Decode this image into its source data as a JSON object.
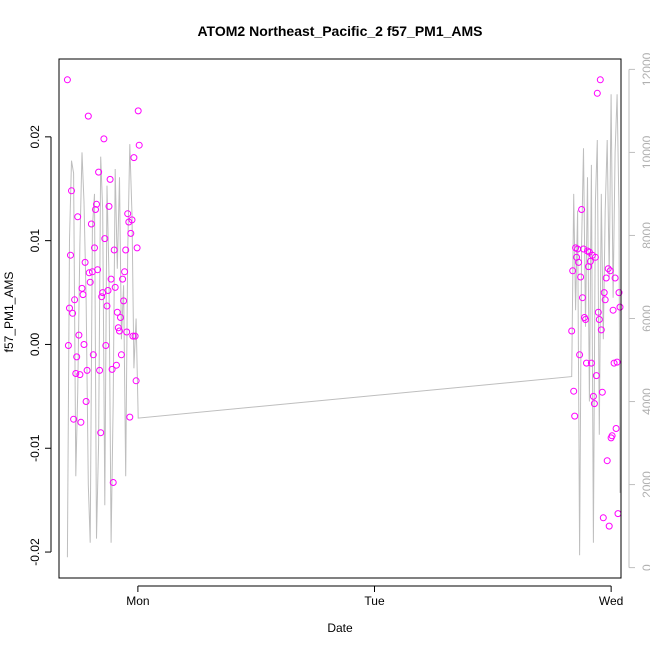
{
  "colors": {
    "points": "#ff00ff",
    "line": "#bebebe",
    "right_axis": "#bebebe",
    "frame": "#000000"
  },
  "chart_data": {
    "type": "scatter",
    "title": "ATOM2 Northeast_Pacific_2 f57_PM1_AMS",
    "xlabel": "Date",
    "ylabel": "f57_PM1_AMS",
    "grid": false,
    "x_axis": {
      "range": [
        "Sun 16:00",
        "Wed 01:00"
      ],
      "ticks": [
        {
          "at": "Mon 00:00",
          "label": "Mon"
        },
        {
          "at": "Tue 00:00",
          "label": "Tue"
        },
        {
          "at": "Wed 00:00",
          "label": "Wed"
        }
      ]
    },
    "y_left": {
      "range": [
        -0.0225,
        0.0275
      ],
      "ticks": [
        -0.02,
        -0.01,
        0.0,
        0.01,
        0.02
      ],
      "tick_labels": [
        "-0.02",
        "-0.01",
        "0.00",
        "0.01",
        "0.02"
      ]
    },
    "y_right": {
      "range": [
        -250,
        12250
      ],
      "ticks": [
        0,
        2000,
        4000,
        6000,
        8000,
        10000,
        12000
      ],
      "tick_labels": [
        "0",
        "2000",
        "4000",
        "6000",
        "8000",
        "10000",
        "12000"
      ],
      "color": "#bebebe"
    },
    "series": [
      {
        "kind": "points",
        "axis": "left",
        "color": "#ff00ff",
        "x": [
          "Sun 16:51",
          "Sun 16:57",
          "Sun 17:04",
          "Sun 17:10",
          "Sun 17:16",
          "Sun 17:23",
          "Sun 17:29",
          "Sun 17:35",
          "Sun 17:42",
          "Sun 17:48",
          "Sun 17:54",
          "Sun 18:01",
          "Sun 18:07",
          "Sun 18:13",
          "Sun 18:20",
          "Sun 18:26",
          "Sun 18:32",
          "Sun 18:39",
          "Sun 18:45",
          "Sun 18:51",
          "Sun 18:58",
          "Sun 19:04",
          "Sun 19:10",
          "Sun 19:17",
          "Sun 19:23",
          "Sun 19:29",
          "Sun 19:36",
          "Sun 19:42",
          "Sun 19:48",
          "Sun 19:55",
          "Sun 20:01",
          "Sun 20:07",
          "Sun 20:14",
          "Sun 20:20",
          "Sun 20:26",
          "Sun 20:33",
          "Sun 20:39",
          "Sun 20:45",
          "Sun 20:52",
          "Sun 20:58",
          "Sun 21:04",
          "Sun 21:11",
          "Sun 21:17",
          "Sun 21:23",
          "Sun 21:30",
          "Sun 21:36",
          "Sun 21:42",
          "Sun 21:49",
          "Sun 21:55",
          "Sun 22:01",
          "Sun 22:08",
          "Sun 22:14",
          "Sun 22:20",
          "Sun 22:27",
          "Sun 22:33",
          "Sun 22:39",
          "Sun 22:46",
          "Sun 22:52",
          "Sun 22:58",
          "Sun 23:05",
          "Sun 23:11",
          "Sun 23:17",
          "Sun 23:24",
          "Sun 23:30",
          "Sun 23:36",
          "Sun 23:43",
          "Sun 23:49",
          "Sun 23:55",
          "Mon 00:02",
          "Mon 00:08",
          "Tue 20:00",
          "Tue 20:06",
          "Tue 20:12",
          "Tue 20:18",
          "Tue 20:24",
          "Tue 20:30",
          "Tue 20:36",
          "Tue 20:42",
          "Tue 20:48",
          "Tue 20:54",
          "Tue 21:00",
          "Tue 21:06",
          "Tue 21:12",
          "Tue 21:18",
          "Tue 21:24",
          "Tue 21:30",
          "Tue 21:36",
          "Tue 21:42",
          "Tue 21:48",
          "Tue 21:54",
          "Tue 22:00",
          "Tue 22:06",
          "Tue 22:12",
          "Tue 22:18",
          "Tue 22:24",
          "Tue 22:30",
          "Tue 22:36",
          "Tue 22:42",
          "Tue 22:48",
          "Tue 22:54",
          "Tue 23:00",
          "Tue 23:06",
          "Tue 23:12",
          "Tue 23:18",
          "Tue 23:24",
          "Tue 23:30",
          "Tue 23:36",
          "Tue 23:42",
          "Tue 23:48",
          "Tue 23:54",
          "Wed 00:00",
          "Wed 00:06",
          "Wed 00:12",
          "Wed 00:18",
          "Wed 00:24",
          "Wed 00:30",
          "Wed 00:36",
          "Wed 00:42",
          "Wed 00:48",
          "Wed 00:54"
        ],
        "y": [
          0.0255,
          -0.0001,
          0.0035,
          0.0086,
          0.0148,
          0.003,
          -0.0072,
          0.0043,
          -0.0028,
          -0.0012,
          0.0123,
          0.0009,
          -0.0029,
          -0.0075,
          0.0054,
          0.0048,
          0.0,
          0.0079,
          -0.0055,
          -0.0025,
          0.022,
          0.0069,
          0.006,
          0.0116,
          0.007,
          -0.001,
          0.0093,
          0.013,
          0.0135,
          0.0072,
          0.0166,
          -0.0025,
          -0.0085,
          0.0046,
          0.005,
          0.0198,
          0.0102,
          -0.0001,
          0.0037,
          0.0052,
          0.0133,
          0.0159,
          0.0063,
          -0.0024,
          -0.0133,
          0.0091,
          0.0055,
          -0.002,
          0.0031,
          0.0016,
          0.0013,
          0.0026,
          -0.001,
          0.0063,
          0.0042,
          0.007,
          0.0091,
          0.0012,
          0.0126,
          0.0118,
          -0.007,
          0.0107,
          0.012,
          0.0008,
          0.018,
          0.0008,
          -0.0035,
          0.0093,
          0.0225,
          0.0192,
          0.0013,
          0.0071,
          -0.0045,
          -0.0069,
          0.0093,
          0.0084,
          0.0092,
          0.0079,
          -0.001,
          0.0065,
          0.013,
          0.0045,
          0.0092,
          0.0026,
          0.0024,
          -0.0018,
          0.009,
          0.0075,
          0.0089,
          0.008,
          -0.0018,
          0.0086,
          -0.005,
          -0.0057,
          0.0084,
          -0.003,
          0.0242,
          0.0031,
          0.0024,
          0.0255,
          0.0014,
          -0.0046,
          -0.0167,
          0.005,
          0.0043,
          0.0064,
          -0.0112,
          0.0073,
          -0.0175,
          0.0071,
          -0.009,
          -0.0088,
          0.0033,
          -0.0018,
          0.0064,
          -0.0081,
          -0.0017,
          -0.0163,
          0.005,
          0.0036
        ]
      },
      {
        "kind": "line",
        "axis": "right",
        "color": "#bebebe",
        "x": [
          "Sun 16:51",
          "Sun 17:04",
          "Sun 17:16",
          "Sun 17:29",
          "Sun 17:42",
          "Sun 17:54",
          "Sun 18:07",
          "Sun 18:20",
          "Sun 18:32",
          "Sun 18:45",
          "Sun 18:58",
          "Sun 19:10",
          "Sun 19:23",
          "Sun 19:36",
          "Sun 19:48",
          "Sun 20:01",
          "Sun 20:14",
          "Sun 20:26",
          "Sun 20:39",
          "Sun 20:52",
          "Sun 21:04",
          "Sun 21:17",
          "Sun 21:30",
          "Sun 21:42",
          "Sun 21:55",
          "Sun 22:08",
          "Sun 22:20",
          "Sun 22:33",
          "Sun 22:46",
          "Sun 22:58",
          "Sun 23:11",
          "Sun 23:24",
          "Sun 23:36",
          "Sun 23:49",
          "Mon 00:02",
          "Tue 20:00",
          "Tue 20:12",
          "Tue 20:24",
          "Tue 20:36",
          "Tue 20:48",
          "Tue 21:00",
          "Tue 21:12",
          "Tue 21:24",
          "Tue 21:36",
          "Tue 21:48",
          "Tue 22:00",
          "Tue 22:12",
          "Tue 22:24",
          "Tue 22:36",
          "Tue 22:48",
          "Tue 23:00",
          "Tue 23:12",
          "Tue 23:24",
          "Tue 23:36",
          "Tue 23:48",
          "Wed 00:00",
          "Wed 00:12",
          "Wed 00:24",
          "Wed 00:36",
          "Wed 00:48",
          "Wed 00:54"
        ],
        "y": [
          250,
          7900,
          9800,
          9500,
          2200,
          4200,
          7800,
          10000,
          8800,
          6500,
          2000,
          600,
          8200,
          9000,
          700,
          3000,
          9900,
          8600,
          1500,
          9200,
          7000,
          600,
          4000,
          9600,
          7200,
          9400,
          5500,
          6800,
          2200,
          7600,
          10200,
          8500,
          4800,
          6000,
          3600,
          4600,
          9000,
          6200,
          8600,
          300,
          7800,
          10100,
          5800,
          9400,
          4000,
          9700,
          600,
          8800,
          10300,
          3200,
          9000,
          5500,
          8600,
          10300,
          7000,
          11400,
          6500,
          10000,
          11400,
          8600,
          1800
        ]
      }
    ]
  }
}
